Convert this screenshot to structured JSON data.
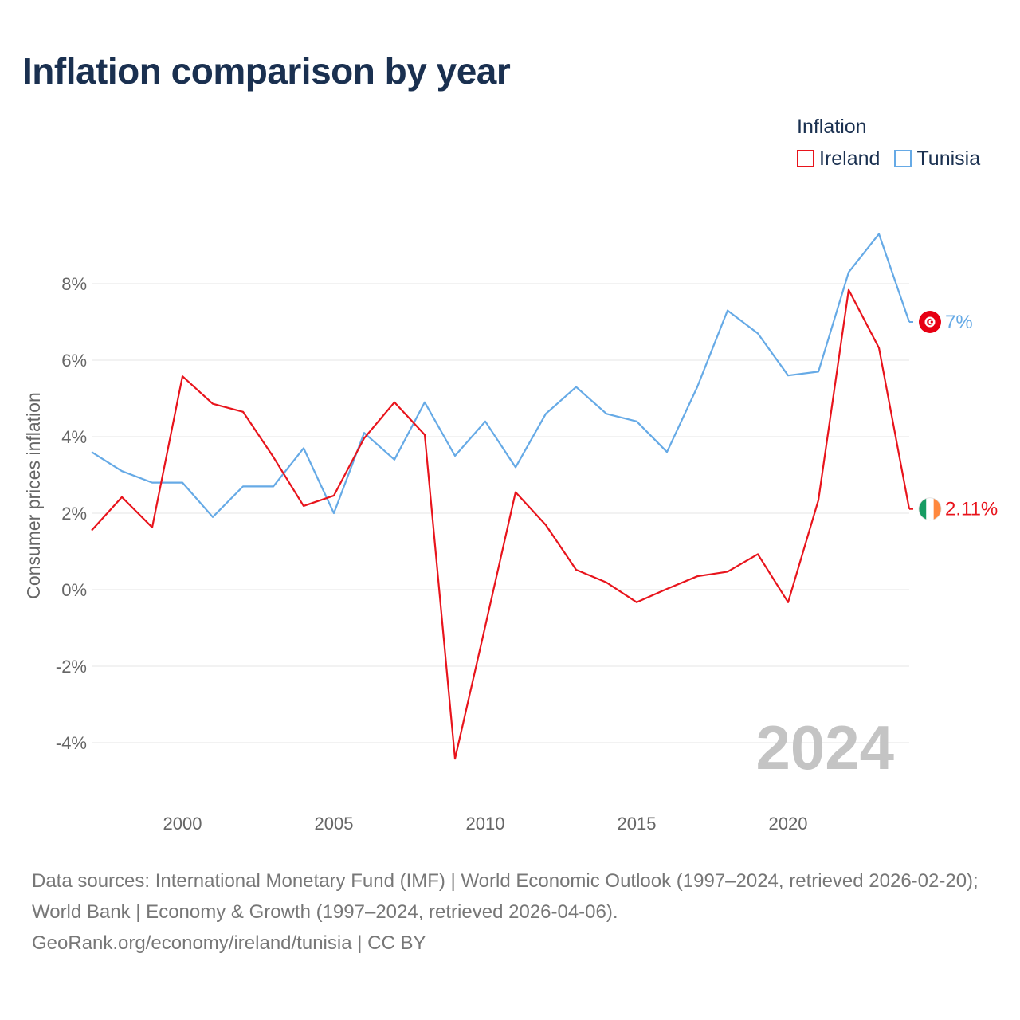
{
  "title": "Inflation comparison by year",
  "legend": {
    "title": "Inflation",
    "items": [
      {
        "label": "Ireland",
        "color": "#e8141c"
      },
      {
        "label": "Tunisia",
        "color": "#66aae6"
      }
    ]
  },
  "chart_data": {
    "type": "line",
    "title": "Inflation comparison by year",
    "xlabel": "",
    "ylabel": "Consumer prices inflation",
    "x": [
      1997,
      1998,
      1999,
      2000,
      2001,
      2002,
      2003,
      2004,
      2005,
      2006,
      2007,
      2008,
      2009,
      2010,
      2011,
      2012,
      2013,
      2014,
      2015,
      2016,
      2017,
      2018,
      2019,
      2020,
      2021,
      2022,
      2023,
      2024
    ],
    "xlim": [
      1997,
      2024
    ],
    "ylim": [
      -5,
      10
    ],
    "x_ticks": [
      2000,
      2005,
      2010,
      2015,
      2020
    ],
    "x_tick_labels": [
      "2000",
      "2005",
      "2010",
      "2015",
      "2020"
    ],
    "y_ticks": [
      -4,
      -2,
      0,
      2,
      4,
      6,
      8
    ],
    "y_tick_labels": [
      "-4%",
      "-2%",
      "0%",
      "2%",
      "4%",
      "6%",
      "8%"
    ],
    "grid": true,
    "series": [
      {
        "name": "Ireland",
        "color": "#e8141c",
        "values": [
          1.55,
          2.42,
          1.63,
          5.58,
          4.86,
          4.65,
          3.47,
          2.19,
          2.46,
          3.96,
          4.9,
          4.05,
          -4.42,
          -0.95,
          2.55,
          1.69,
          0.52,
          0.19,
          -0.33,
          0.02,
          0.35,
          0.47,
          0.93,
          -0.33,
          2.34,
          7.84,
          6.32,
          2.11
        ],
        "end_label": "2.11%"
      },
      {
        "name": "Tunisia",
        "color": "#66aae6",
        "values": [
          3.6,
          3.1,
          2.8,
          2.8,
          1.9,
          2.7,
          2.7,
          3.7,
          2.0,
          4.1,
          3.4,
          4.9,
          3.5,
          4.4,
          3.2,
          4.6,
          5.3,
          4.6,
          4.4,
          3.6,
          5.3,
          7.3,
          6.7,
          5.6,
          5.7,
          8.3,
          9.3,
          7.0
        ],
        "end_label": "7%"
      }
    ],
    "annotation": "2024"
  },
  "footer": {
    "line1": "Data sources: International Monetary Fund (IMF) | World Economic Outlook (1997–2024, retrieved 2026-02-20); World Bank | Economy & Growth (1997–2024, retrieved 2026-04-06).",
    "line2": "GeoRank.org/economy/ireland/tunisia | CC BY"
  },
  "colors": {
    "title": "#1a3050",
    "grid": "#e6e6e6",
    "tick_text": "#666666",
    "footer_text": "#777777",
    "watermark": "#c4c4c4",
    "flag_tunisia_red": "#e70013",
    "flag_ireland_green": "#169b62",
    "flag_ireland_orange": "#ff883e"
  }
}
